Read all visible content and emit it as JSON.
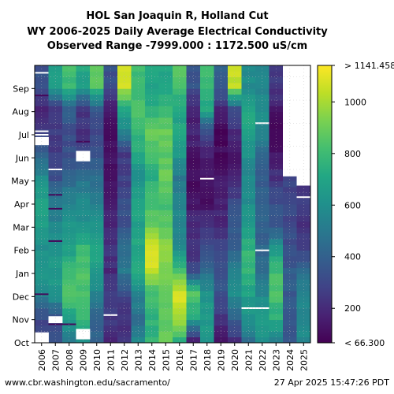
{
  "chart_data": {
    "type": "heatmap",
    "title_lines": [
      "HOL San Joaquin R, Holland Cut",
      "WY 2006-2025 Daily Average Electrical Conductivity",
      "Observed Range -7999.000 : 1172.500 uS/cm"
    ],
    "x_labels": [
      "2006",
      "2007",
      "2008",
      "2009",
      "2010",
      "2011",
      "2012",
      "2013",
      "2014",
      "2015",
      "2016",
      "2017",
      "2018",
      "2019",
      "2020",
      "2021",
      "2022",
      "2023",
      "2024",
      "2025"
    ],
    "y_labels": [
      "Oct",
      "Nov",
      "Dec",
      "Jan",
      "Feb",
      "Mar",
      "Apr",
      "May",
      "Jun",
      "Jul",
      "Aug",
      "Sep"
    ],
    "colorbar": {
      "min": 66.3,
      "max": 1141.458,
      "ticks": [
        200,
        400,
        600,
        800,
        1000
      ],
      "tick_labels": [
        "200",
        "400",
        "600",
        "800",
        "1000"
      ],
      "min_label": "< 66.300",
      "max_label": "> 1141.458",
      "colormap": "viridis"
    },
    "grid": true,
    "monthly_values": [
      [
        250,
        330,
        560,
        650,
        600,
        660,
        700,
        600,
        430,
        250,
        180,
        350
      ],
      [
        330,
        350,
        640,
        660,
        640,
        560,
        480,
        330,
        270,
        250,
        250,
        700
      ],
      [
        500,
        700,
        850,
        780,
        660,
        620,
        540,
        410,
        330,
        330,
        400,
        800
      ],
      [
        600,
        780,
        820,
        830,
        790,
        600,
        580,
        470,
        310,
        220,
        250,
        700
      ],
      [
        380,
        420,
        550,
        650,
        700,
        600,
        540,
        450,
        360,
        300,
        380,
        850
      ],
      [
        150,
        260,
        270,
        200,
        240,
        200,
        150,
        120,
        120,
        110,
        150,
        330
      ],
      [
        220,
        230,
        300,
        500,
        470,
        350,
        330,
        270,
        260,
        540,
        700,
        1050
      ],
      [
        550,
        450,
        560,
        730,
        700,
        680,
        720,
        600,
        700,
        780,
        830,
        800
      ],
      [
        760,
        770,
        800,
        1050,
        1100,
        900,
        800,
        750,
        800,
        900,
        750,
        700
      ],
      [
        870,
        870,
        850,
        950,
        940,
        870,
        800,
        900,
        850,
        900,
        780,
        700
      ],
      [
        770,
        1000,
        1100,
        800,
        560,
        560,
        560,
        500,
        640,
        700,
        700,
        850
      ],
      [
        200,
        700,
        860,
        300,
        220,
        200,
        130,
        110,
        130,
        180,
        160,
        350
      ],
      [
        650,
        650,
        600,
        450,
        330,
        230,
        120,
        140,
        170,
        300,
        700,
        800
      ],
      [
        150,
        230,
        330,
        350,
        300,
        190,
        180,
        130,
        100,
        100,
        200,
        400
      ],
      [
        220,
        400,
        600,
        520,
        400,
        370,
        300,
        200,
        120,
        200,
        350,
        1050
      ],
      [
        470,
        600,
        680,
        780,
        760,
        650,
        580,
        560,
        600,
        700,
        720,
        580
      ],
      [
        620,
        680,
        550,
        450,
        420,
        400,
        380,
        400,
        430,
        560,
        600,
        550
      ],
      [
        550,
        750,
        840,
        800,
        620,
        350,
        330,
        230,
        130,
        100,
        150,
        250
      ],
      [
        380,
        350,
        380,
        380,
        330,
        300,
        300,
        280,
        260,
        250,
        300,
        330
      ],
      [
        560,
        580,
        550,
        440,
        260,
        200,
        260,
        230,
        null,
        null,
        null,
        null
      ]
    ],
    "missing_segments": [
      {
        "year": "2006",
        "from_month": 0.0,
        "to_month": 0.45
      },
      {
        "year": "2006",
        "from_month": 8.55,
        "to_month": 8.9
      },
      {
        "year": "2007",
        "from_month": 0.85,
        "to_month": 1.15
      },
      {
        "year": "2009",
        "from_month": 0.15,
        "to_month": 0.6
      },
      {
        "year": "2009",
        "from_month": 7.85,
        "to_month": 8.3
      },
      {
        "year": "2024",
        "from_month": 7.2,
        "to_month": 12.0
      },
      {
        "year": "2025",
        "from_month": 6.8,
        "to_month": 12.0
      }
    ],
    "white_lines": [
      {
        "year": "2006",
        "month": 11.68
      },
      {
        "year": "2006",
        "month": 9.0
      },
      {
        "year": "2006",
        "month": 9.15
      },
      {
        "year": "2007",
        "month": 7.5
      },
      {
        "year": "2011",
        "month": 1.2
      },
      {
        "year": "2018",
        "month": 7.1
      },
      {
        "year": "2021",
        "month": 1.5
      },
      {
        "year": "2022",
        "month": 1.5
      },
      {
        "year": "2022",
        "month": 4.0
      },
      {
        "year": "2022",
        "month": 9.5
      },
      {
        "year": "2025",
        "month": 6.3
      }
    ],
    "dark_lines": [
      {
        "year": "2006",
        "month": 10.7
      },
      {
        "year": "2006",
        "month": 2.1
      },
      {
        "year": "2007",
        "month": 0.8
      },
      {
        "year": "2008",
        "month": 0.8
      },
      {
        "year": "2007",
        "month": 6.4
      },
      {
        "year": "2007",
        "month": 5.8
      },
      {
        "year": "2007",
        "month": 4.4
      },
      {
        "year": "2009",
        "month": 8.7
      }
    ]
  },
  "footer": {
    "left": "www.cbr.washington.edu/sacramento/",
    "right": "27 Apr 2025 15:47:26 PDT"
  }
}
